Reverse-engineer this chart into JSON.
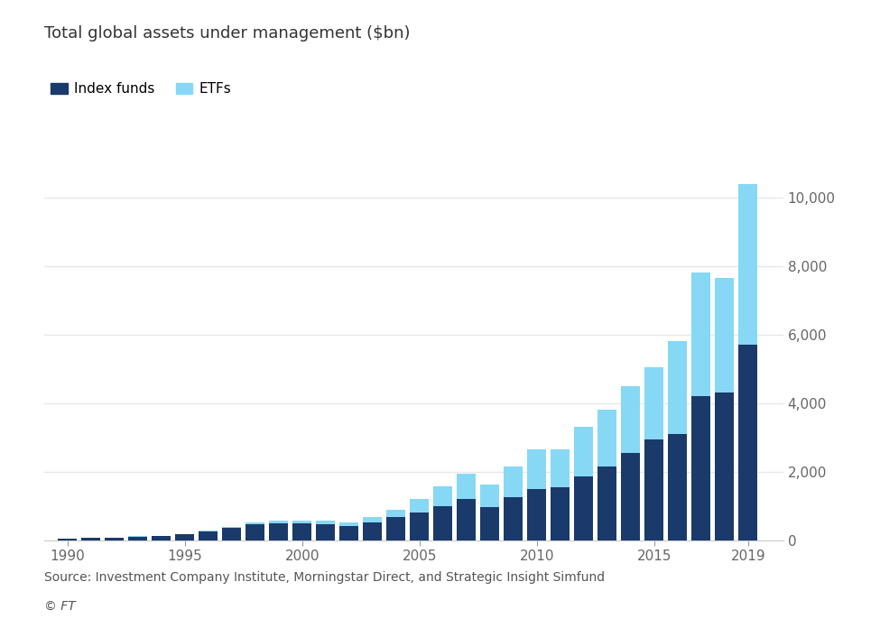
{
  "title": "Total global assets under management ($bn)",
  "years": [
    1990,
    1991,
    1992,
    1993,
    1994,
    1995,
    1996,
    1997,
    1998,
    1999,
    2000,
    2001,
    2002,
    2003,
    2004,
    2005,
    2006,
    2007,
    2008,
    2009,
    2010,
    2011,
    2012,
    2013,
    2014,
    2015,
    2016,
    2017,
    2018,
    2019
  ],
  "index_funds": [
    50,
    55,
    65,
    100,
    110,
    160,
    250,
    350,
    450,
    500,
    480,
    450,
    420,
    520,
    680,
    800,
    1000,
    1200,
    950,
    1250,
    1500,
    1550,
    1850,
    2150,
    2550,
    2950,
    3100,
    4200,
    4300,
    5700
  ],
  "etfs": [
    2,
    3,
    5,
    8,
    10,
    15,
    20,
    35,
    60,
    80,
    100,
    110,
    100,
    145,
    215,
    410,
    570,
    740,
    680,
    900,
    1150,
    1100,
    1450,
    1650,
    1950,
    2100,
    2700,
    3600,
    3350,
    4700
  ],
  "index_funds_color": "#1a3a6b",
  "etfs_color": "#87d8f5",
  "background_color": "#ffffff",
  "grid_color": "#e8e8e8",
  "ylim": [
    0,
    11000
  ],
  "yticks": [
    0,
    2000,
    4000,
    6000,
    8000,
    10000
  ],
  "xtick_positions": [
    1990,
    1995,
    2000,
    2005,
    2010,
    2015,
    2019
  ],
  "source_text": "Source: Investment Company Institute, Morningstar Direct, and Strategic Insight Simfund",
  "copyright_text": "© FT",
  "legend_labels": [
    "Index funds",
    "ETFs"
  ],
  "title_fontsize": 13,
  "tick_fontsize": 11,
  "source_fontsize": 10,
  "bar_width": 0.8
}
